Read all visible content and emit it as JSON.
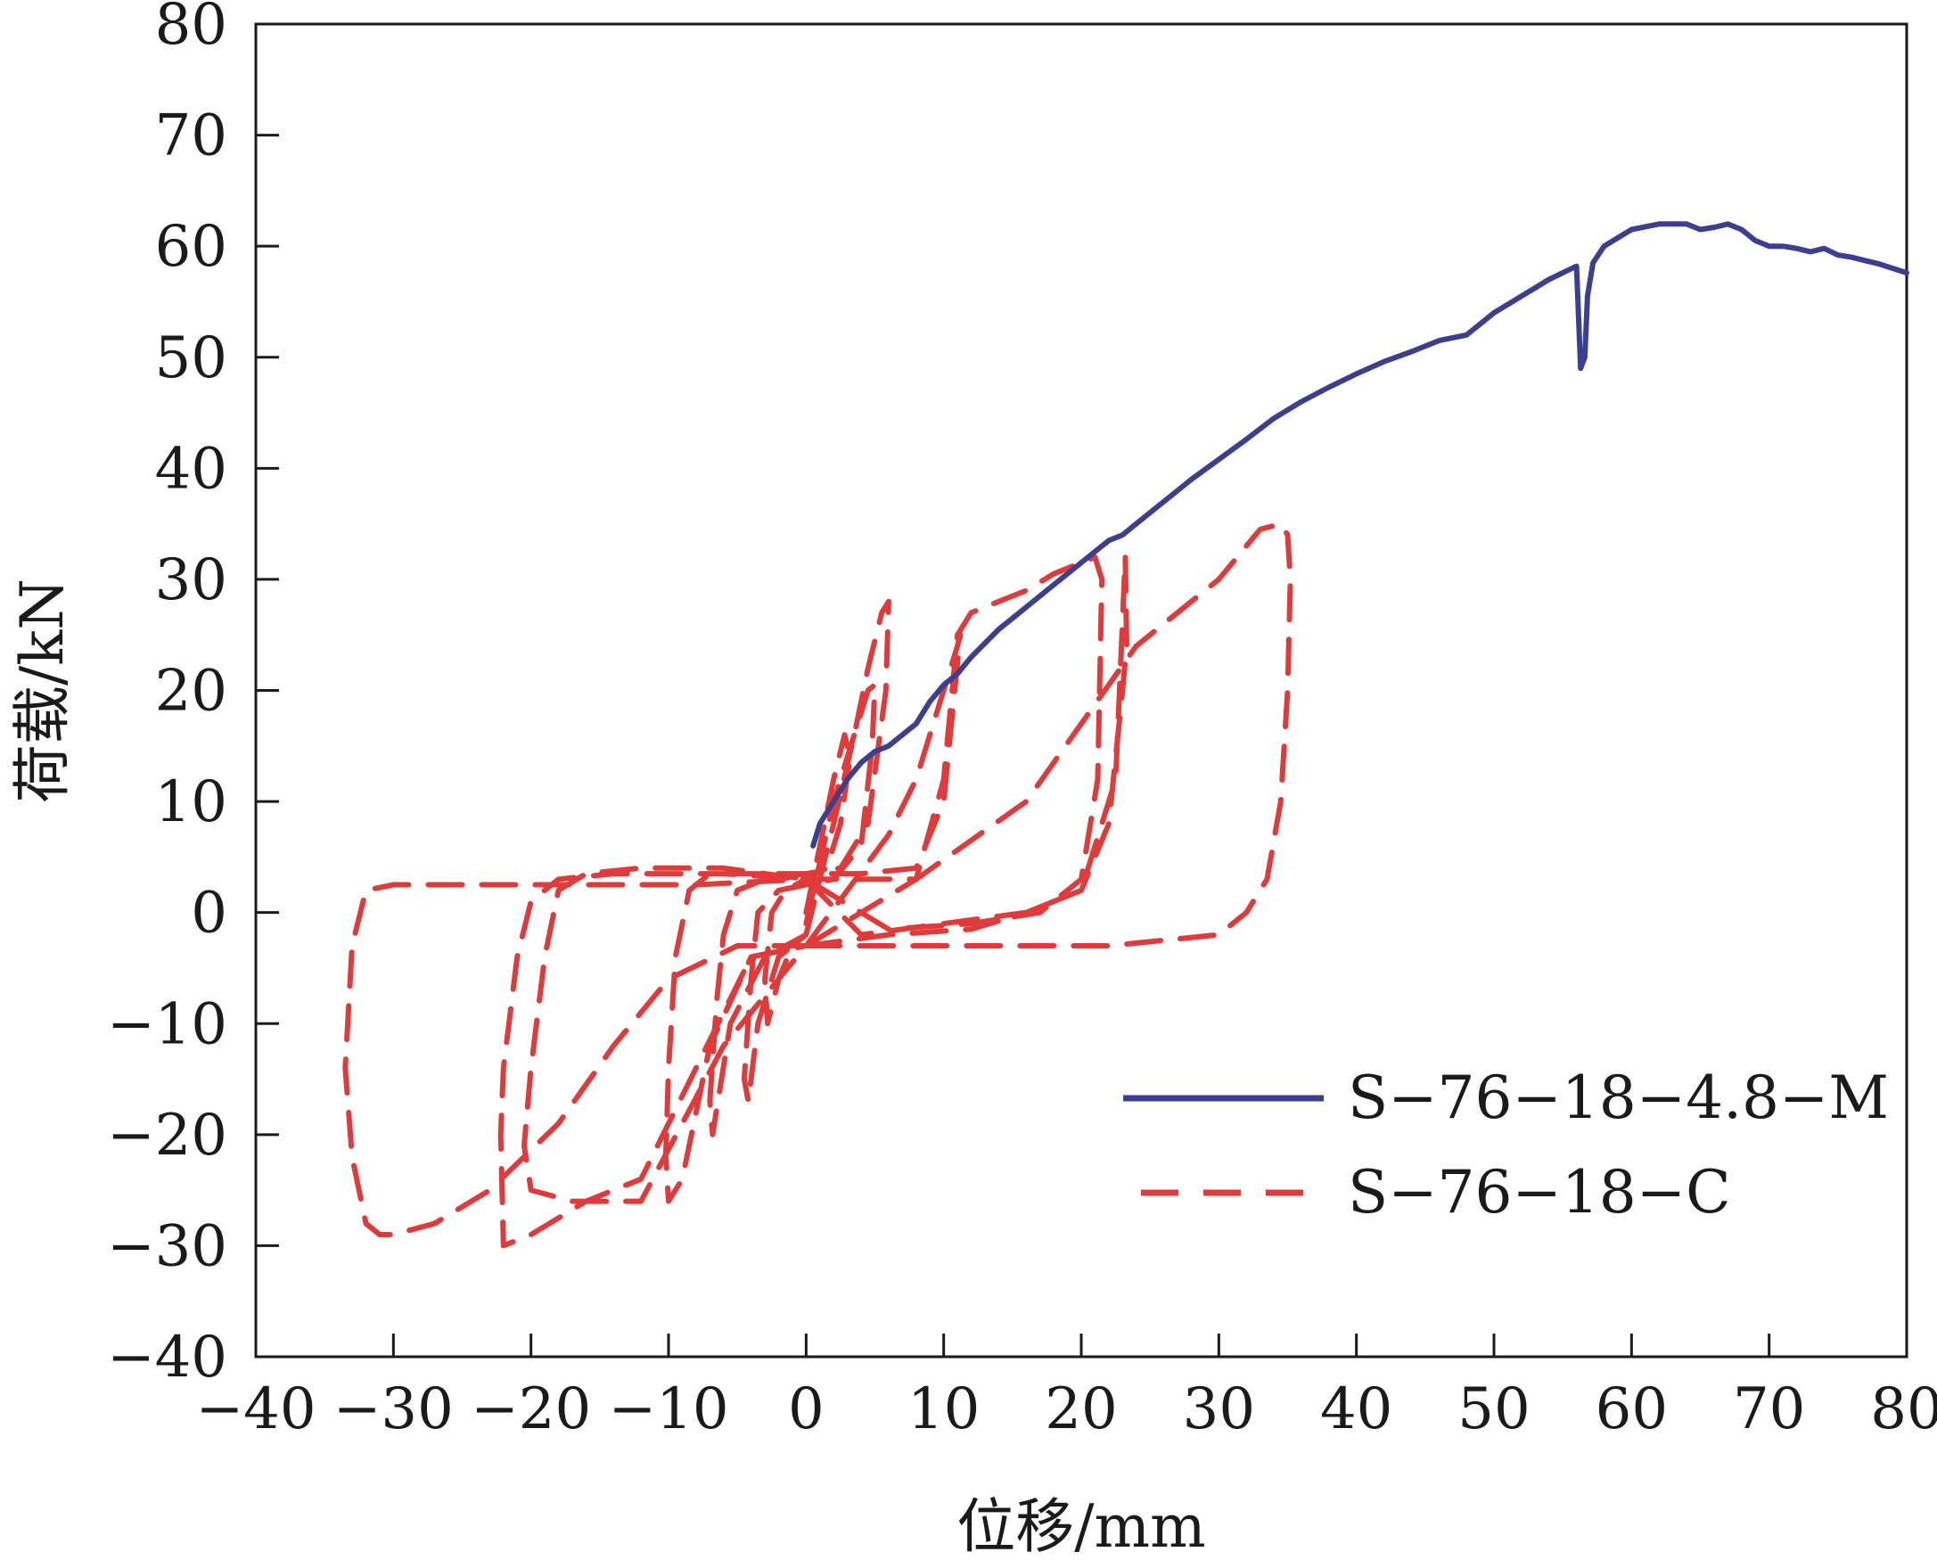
{
  "chart_data": {
    "type": "line",
    "xlabel": "位移/mm",
    "ylabel": "荷载/kN",
    "xlim": [
      -40,
      80
    ],
    "ylim": [
      -40,
      80
    ],
    "xticks": [
      -40,
      -30,
      -20,
      -10,
      0,
      10,
      20,
      30,
      40,
      50,
      60,
      70,
      80
    ],
    "yticks": [
      -40,
      -30,
      -20,
      -10,
      0,
      10,
      20,
      30,
      40,
      50,
      60,
      70,
      80
    ],
    "xtick_labels": [
      "−40",
      "−30",
      "−20",
      "−10",
      "0",
      "10",
      "20",
      "30",
      "40",
      "50",
      "60",
      "70",
      "80"
    ],
    "ytick_labels": [
      "−40",
      "−30",
      "−20",
      "−10",
      "0",
      "10",
      "20",
      "30",
      "40",
      "50",
      "60",
      "70",
      "80"
    ],
    "grid": false,
    "legend_position": "bottom-right",
    "series": [
      {
        "name": "S−76−18−4.8−M",
        "color": "#3c3f8f",
        "style": "solid",
        "x": [
          0.5,
          1,
          2,
          3,
          4,
          5,
          6,
          7,
          8,
          9,
          10,
          11,
          12,
          14,
          16,
          18,
          20,
          22,
          23,
          24,
          26,
          28,
          30,
          32,
          34,
          36,
          38,
          40,
          42,
          44,
          46,
          48,
          49,
          50,
          52,
          54,
          56,
          56.3,
          56.6,
          56.8,
          57.2,
          58,
          60,
          62,
          64,
          65,
          66,
          67,
          68,
          69,
          70,
          71,
          72,
          73,
          74,
          75,
          76,
          77,
          78,
          79,
          80
        ],
        "y": [
          6,
          8,
          10,
          12,
          13.5,
          14.5,
          15,
          16,
          17,
          19,
          20.5,
          21.5,
          23,
          25.5,
          27.5,
          29.5,
          31.5,
          33.5,
          34,
          35,
          37,
          39,
          40.8,
          42.6,
          44.5,
          46,
          47.3,
          48.5,
          49.6,
          50.5,
          51.5,
          52,
          53,
          54,
          55.5,
          57,
          58.2,
          49,
          50,
          55.5,
          58.5,
          60,
          61.5,
          62,
          62,
          61.5,
          61.7,
          62,
          61.5,
          60.5,
          60,
          60,
          59.8,
          59.5,
          59.8,
          59.2,
          59,
          58.7,
          58.4,
          58,
          57.6
        ]
      },
      {
        "name": "S−76−18−C",
        "color": "#e03a3a",
        "style": "dashed",
        "loops": [
          {
            "x": [
              0,
              1,
              2,
              2.8,
              3.2,
              2.5,
              1.5,
              0,
              -1.5,
              -2.5,
              -3,
              -2.8,
              -2,
              -1,
              0
            ],
            "y": [
              0,
              6,
              12,
              16,
              14,
              8,
              4,
              3,
              2,
              0,
              -6,
              -10,
              -6,
              -3,
              -2
            ]
          },
          {
            "x": [
              0,
              2,
              4,
              4.5,
              5,
              4.8,
              4,
              2,
              0,
              -2,
              -3.5,
              -4,
              -4.5,
              -4.2,
              -3.5,
              -2,
              0
            ],
            "y": [
              -1,
              10,
              18,
              20,
              20.5,
              15,
              6,
              3,
              2.5,
              2,
              0,
              -6,
              -15,
              -17,
              -10,
              -4,
              -2
            ]
          },
          {
            "x": [
              0,
              2,
              3.5,
              4.5,
              5.5,
              6,
              5.8,
              4.5,
              2.5,
              0,
              -3,
              -5,
              -6,
              -6.5,
              -7,
              -6.8,
              -5.5,
              -3,
              0
            ],
            "y": [
              -2,
              8,
              16,
              22,
              27,
              28,
              20,
              8,
              4,
              3.5,
              3,
              2,
              -2,
              -8,
              -17,
              -20,
              -10,
              -4,
              -2
            ]
          },
          {
            "x": [
              0,
              3,
              6,
              8,
              9.5,
              10.5,
              11,
              11.2,
              10.8,
              10,
              8,
              4,
              0,
              -4,
              -7,
              -8.5,
              -9.5,
              -10,
              -10.2,
              -10,
              -9,
              -7,
              -4,
              0
            ],
            "y": [
              -3,
              2,
              7,
              12,
              18,
              22,
              24,
              25,
              20,
              10,
              4,
              3.5,
              3.5,
              3.5,
              3.5,
              2,
              -4,
              -14,
              -22,
              -26,
              -24,
              -12,
              -4,
              -3
            ]
          },
          {
            "x": [
              0,
              4,
              8,
              10,
              11,
              12,
              14,
              16,
              18,
              20,
              21,
              21.5,
              21.2,
              20,
              17,
              12,
              6,
              0,
              -6,
              -12,
              -16,
              -18,
              -19,
              -20,
              -20.5,
              -20,
              -17,
              -12,
              -6,
              0
            ],
            "y": [
              -3,
              0,
              3,
              12,
              25,
              27,
              28,
              29,
              30.5,
              31.5,
              32,
              30,
              12,
              3,
              0,
              -1,
              -1.5,
              3,
              4,
              4,
              3.5,
              2,
              -4,
              -14,
              -21,
              -25,
              -26,
              -26,
              -12,
              -3
            ]
          },
          {
            "x": [
              0,
              6,
              12,
              16,
              20,
              22,
              23,
              23.3,
              23.2,
              22.5,
              20,
              16,
              10,
              4,
              0,
              -6,
              -14,
              -18,
              -20,
              -21,
              -22,
              -22.2,
              -22,
              -20,
              -16,
              -12,
              -8,
              -4,
              0
            ],
            "y": [
              -3,
              -2,
              -1.5,
              0,
              2,
              8,
              20,
              24,
              32,
              12,
              2,
              0,
              -1,
              -2,
              3,
              3.5,
              3.5,
              3,
              1,
              -4,
              -14,
              -20,
              -30,
              -29,
              -26,
              -24,
              -14,
              -4,
              -3
            ]
          },
          {
            "x": [
              0,
              8,
              16,
              22,
              26,
              30,
              32,
              33.5,
              34.5,
              35,
              35.2,
              35,
              34.5,
              33,
              30,
              24,
              16,
              8,
              0,
              -8,
              -16,
              -22,
              -26,
              -28,
              -30,
              -32,
              -33,
              -33.5,
              -33,
              -32,
              -31,
              -30,
              -27,
              -23,
              -18,
              -14,
              -10,
              -5,
              0
            ],
            "y": [
              -3,
              -3,
              -3,
              -3,
              -2.5,
              -2,
              0,
              3,
              10,
              20,
              30,
              34,
              35,
              34.5,
              30,
              24,
              10,
              3,
              3,
              2.5,
              2.5,
              2.5,
              2.5,
              2.5,
              2.5,
              2,
              -3,
              -14,
              -22,
              -28,
              -29,
              -29,
              -28,
              -25,
              -19,
              -12,
              -6,
              -3,
              -3
            ]
          }
        ]
      }
    ]
  }
}
